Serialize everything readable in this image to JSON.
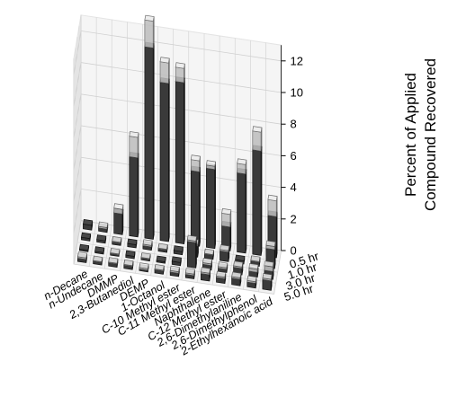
{
  "chart_data": {
    "type": "bar3d",
    "categories": [
      "n-Decane",
      "n-Undecane",
      "DMMP",
      "2,3-Butanediol",
      "DEMP",
      "1-Octanol",
      "C-10 Methyl ester",
      "C-11 Methyl ester",
      "Naphthalene",
      "C-12 Methyl ester",
      "2,6-Dimethylaniline",
      "2,6-Dimethylphenol",
      "2-Ethylhexanoic acid"
    ],
    "time_points": [
      "0.5 hr",
      "1.0 hr",
      "3.0 hr",
      "5.0 hr"
    ],
    "zlabel": [
      "Percent of Applied",
      "Compound Recovered"
    ],
    "zlim": [
      0,
      13
    ],
    "zticks": [
      0,
      2,
      4,
      6,
      8,
      10,
      12
    ],
    "grid": true,
    "series": [
      {
        "name": "0.5 hr",
        "values": [
          0.3,
          0.2,
          1.3,
          5.0,
          12.1,
          10.0,
          10.2,
          4.7,
          5.0,
          1.5,
          5.0,
          6.6,
          2.6
        ],
        "upper": [
          0.3,
          0.3,
          1.6,
          6.3,
          13.8,
          11.3,
          11.1,
          5.4,
          5.2,
          2.3,
          5.6,
          7.8,
          3.6
        ]
      },
      {
        "name": "1.0 hr",
        "values": [
          0.15,
          0.15,
          0.15,
          0.2,
          0.2,
          0.15,
          0.2,
          0.7,
          0.25,
          0.6,
          0.2,
          0.25,
          1.2
        ],
        "upper": [
          0.15,
          0.15,
          0.2,
          0.2,
          0.3,
          0.2,
          0.2,
          0.8,
          0.3,
          0.7,
          0.2,
          0.3,
          1.4
        ]
      },
      {
        "name": "3.0 hr",
        "values": [
          0.1,
          0.1,
          0.1,
          0.15,
          0.1,
          0.1,
          0.2,
          1.6,
          0.3,
          0.2,
          0.4,
          0.3,
          0.5
        ],
        "upper": [
          0.1,
          0.1,
          0.15,
          0.15,
          0.15,
          0.1,
          0.2,
          1.7,
          0.4,
          0.3,
          0.5,
          0.5,
          0.8
        ]
      },
      {
        "name": "5.0 hr",
        "values": [
          0.2,
          0.15,
          0.2,
          0.2,
          0.1,
          0.2,
          0.2,
          0.2,
          0.4,
          0.3,
          0.4,
          0.3,
          0.6
        ],
        "upper": [
          0.3,
          0.2,
          0.25,
          0.25,
          0.2,
          0.25,
          0.3,
          0.3,
          0.5,
          0.4,
          0.5,
          0.4,
          0.7
        ]
      }
    ],
    "colors": {
      "bar": "#3a3a3a",
      "upper": "#bdbdbd",
      "grid": "#d0d0d0",
      "pane": "#f2f2f2"
    }
  }
}
